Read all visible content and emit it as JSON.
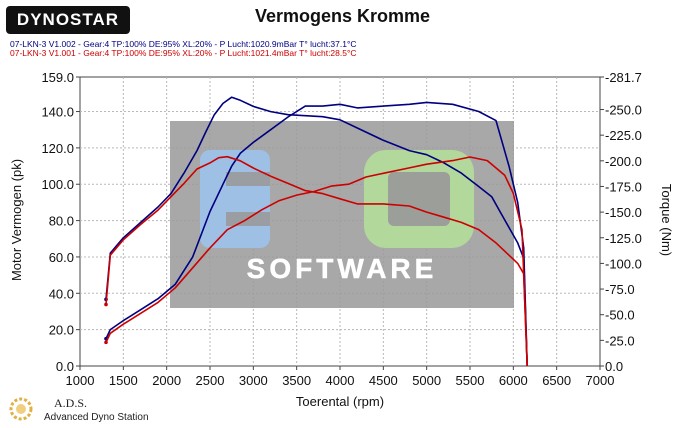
{
  "logo": {
    "text": "DYNOSTAR",
    "icon": "dynostar-logo"
  },
  "chart_data": {
    "type": "line",
    "title": "Vermogens Kromme",
    "xlabel": "Toerental (rpm)",
    "ylabel": "Motor Vermogen (pk)",
    "y2label": "Torque (Nm)",
    "xlim": [
      1000,
      7000
    ],
    "ylim": [
      0,
      159
    ],
    "y2lim": [
      0,
      281.7
    ],
    "grid": true,
    "x_ticks": [
      "1000",
      "1500",
      "2000",
      "2500",
      "3000",
      "3500",
      "4000",
      "4500",
      "5000",
      "5500",
      "6000",
      "6500",
      "7000"
    ],
    "y_ticks": [
      "0.0",
      "20.0",
      "40.0",
      "60.0",
      "80.0",
      "100.0",
      "120.0",
      "140.0",
      "159.0"
    ],
    "y2_ticks": [
      "0.0",
      "-25.0",
      "-50.0",
      "-75.0",
      "-100.0",
      "-125.0",
      "-150.0",
      "-175.0",
      "-200.0",
      "-225.0",
      "-250.0",
      "-281.7"
    ],
    "runs": [
      "07-LKN-3 V1.002 - Gear:4 TP:100% DE:95% XL:20%   - P Lucht:1020.9mBar T° lucht:37.1°C",
      "07-LKN-3 V1.001 - Gear:4 TP:100% DE:95% XL:20%   - P Lucht:1021.4mBar T° lucht:28.5°C"
    ],
    "series": [
      {
        "color": "#000080",
        "axis": "y2",
        "x": [
          1300,
          1350,
          1500,
          1700,
          1900,
          2050,
          2200,
          2350,
          2450,
          2550,
          2650,
          2750,
          2850,
          3000,
          3200,
          3400,
          3600,
          3800,
          4000,
          4200,
          4500,
          4800,
          5000,
          5200,
          5400,
          5600,
          5750,
          5850,
          5950,
          6050,
          6120,
          6160
        ],
        "y": [
          65,
          110,
          125,
          140,
          155,
          168,
          188,
          210,
          228,
          245,
          256,
          262,
          259,
          253,
          248,
          245,
          244,
          243,
          240,
          232,
          220,
          210,
          206,
          198,
          188,
          175,
          165,
          150,
          135,
          120,
          105,
          0
        ]
      },
      {
        "color": "#000080",
        "axis": "y1",
        "x": [
          1300,
          1350,
          1500,
          1700,
          1900,
          2100,
          2300,
          2500,
          2650,
          2750,
          2850,
          3000,
          3200,
          3400,
          3600,
          3800,
          4000,
          4200,
          4500,
          4800,
          5000,
          5300,
          5600,
          5800,
          5950,
          6050,
          6120,
          6160
        ],
        "y": [
          15,
          20,
          25,
          31,
          37,
          45,
          60,
          85,
          100,
          110,
          117,
          123,
          130,
          137,
          143,
          143,
          144,
          142,
          143,
          144,
          145,
          144,
          140,
          135,
          110,
          90,
          65,
          0
        ]
      },
      {
        "color": "#cc0000",
        "axis": "y2",
        "x": [
          1300,
          1350,
          1500,
          1700,
          1900,
          2050,
          2200,
          2350,
          2500,
          2600,
          2700,
          2850,
          3000,
          3200,
          3400,
          3600,
          3800,
          4000,
          4200,
          4500,
          4800,
          5000,
          5200,
          5400,
          5600,
          5800,
          5950,
          6050,
          6120,
          6160
        ],
        "y": [
          60,
          108,
          123,
          138,
          152,
          165,
          178,
          192,
          198,
          203,
          204,
          200,
          193,
          185,
          178,
          171,
          168,
          163,
          158,
          158,
          156,
          150,
          145,
          140,
          133,
          120,
          108,
          100,
          90,
          0
        ]
      },
      {
        "color": "#cc0000",
        "axis": "y1",
        "x": [
          1300,
          1350,
          1500,
          1700,
          1900,
          2100,
          2300,
          2500,
          2700,
          2900,
          3100,
          3300,
          3500,
          3700,
          3900,
          4100,
          4300,
          4500,
          4800,
          5000,
          5300,
          5500,
          5700,
          5900,
          6000,
          6100,
          6160
        ],
        "y": [
          13,
          18,
          23,
          29,
          35,
          43,
          54,
          65,
          75,
          80,
          86,
          91,
          94,
          96,
          99,
          100,
          104,
          106,
          109,
          111,
          113,
          115,
          113,
          105,
          95,
          75,
          0
        ]
      }
    ]
  },
  "footer": {
    "ads_name": "A.D.S.",
    "ads_sub": "Advanced Dyno Station",
    "ads_icon": "ads-gear-icon"
  },
  "watermark": {
    "top": "EQ",
    "bottom": "SOFTWARE",
    "colors": [
      "#8fb8e8",
      "#a8d890",
      "#b0b0b0"
    ]
  }
}
